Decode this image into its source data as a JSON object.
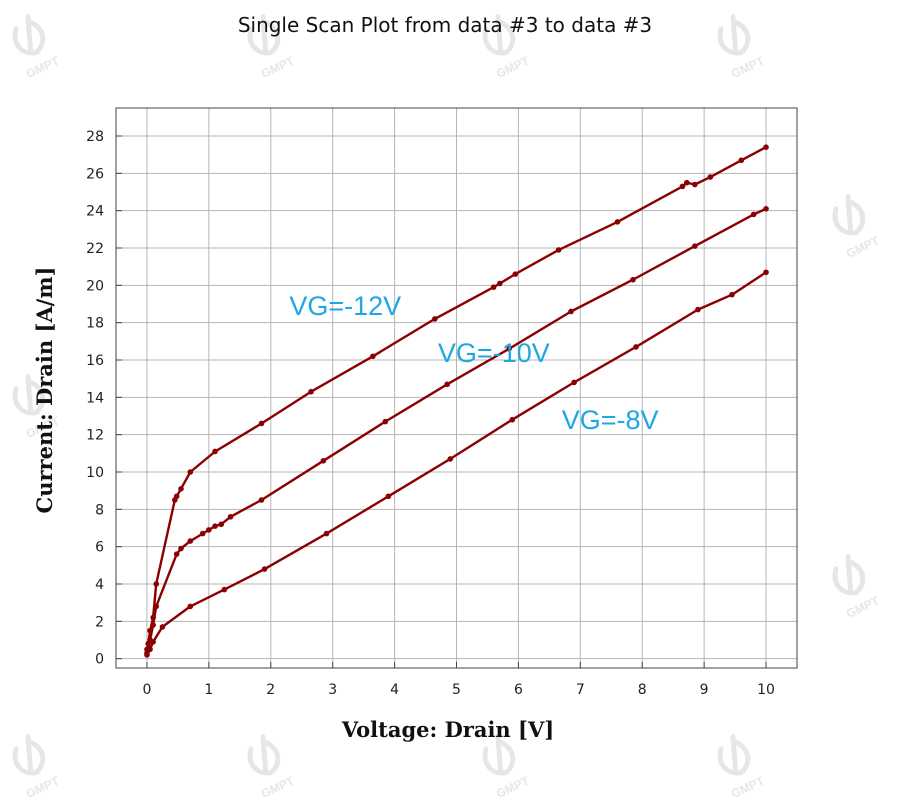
{
  "chart_data": {
    "type": "line",
    "title": "Single Scan Plot from data #3 to data #3",
    "xlabel": "Voltage: Drain [V]",
    "ylabel": "Current: Drain [A/m]",
    "xlim": [
      -0.5,
      10.5
    ],
    "ylim": [
      -0.5,
      29.5
    ],
    "xticks": [
      0,
      1,
      2,
      3,
      4,
      5,
      6,
      7,
      8,
      9,
      10
    ],
    "yticks": [
      0,
      2,
      4,
      6,
      8,
      10,
      12,
      14,
      16,
      18,
      20,
      22,
      24,
      26,
      28
    ],
    "grid": true,
    "line_color": "#8b0000",
    "annotation_color": "#1ea7e1",
    "watermark": "GMPT",
    "series": [
      {
        "annotation": "VG=-12V",
        "x": [
          0,
          0.02,
          0.05,
          0.1,
          0.15,
          0.45,
          0.48,
          0.55,
          0.7,
          1.1,
          1.85,
          2.65,
          3.65,
          4.65,
          5.6,
          5.7,
          5.95,
          6.65,
          7.6,
          8.65,
          8.72,
          8.85,
          9.1,
          9.6,
          10
        ],
        "y": [
          0.5,
          0.8,
          1.5,
          2.2,
          4,
          8.5,
          8.7,
          9.1,
          10,
          11.1,
          12.6,
          14.3,
          16.2,
          18.2,
          19.9,
          20.1,
          20.6,
          21.9,
          23.4,
          25.3,
          25.5,
          25.4,
          25.8,
          26.7,
          27.4
        ]
      },
      {
        "annotation": "VG=-10V",
        "x": [
          0,
          0.02,
          0.05,
          0.1,
          0.15,
          0.48,
          0.55,
          0.7,
          0.9,
          1.0,
          1.1,
          1.2,
          1.35,
          1.85,
          2.85,
          3.85,
          4.85,
          5.85,
          6.85,
          7.85,
          8.85,
          9.8,
          10
        ],
        "y": [
          0.3,
          0.5,
          1,
          1.8,
          2.8,
          5.6,
          5.9,
          6.3,
          6.7,
          6.9,
          7.1,
          7.2,
          7.6,
          8.5,
          10.6,
          12.7,
          14.7,
          16.6,
          18.6,
          20.3,
          22.1,
          23.8,
          24.1
        ]
      },
      {
        "annotation": "VG=-8V",
        "x": [
          0,
          0.05,
          0.1,
          0.25,
          0.7,
          1.25,
          1.9,
          2.9,
          3.9,
          4.9,
          5.9,
          6.9,
          7.9,
          8.9,
          9.45,
          10
        ],
        "y": [
          0.2,
          0.5,
          0.9,
          1.7,
          2.8,
          3.7,
          4.8,
          6.7,
          8.7,
          10.7,
          12.8,
          14.8,
          16.7,
          18.7,
          19.5,
          20.7
        ]
      }
    ]
  }
}
